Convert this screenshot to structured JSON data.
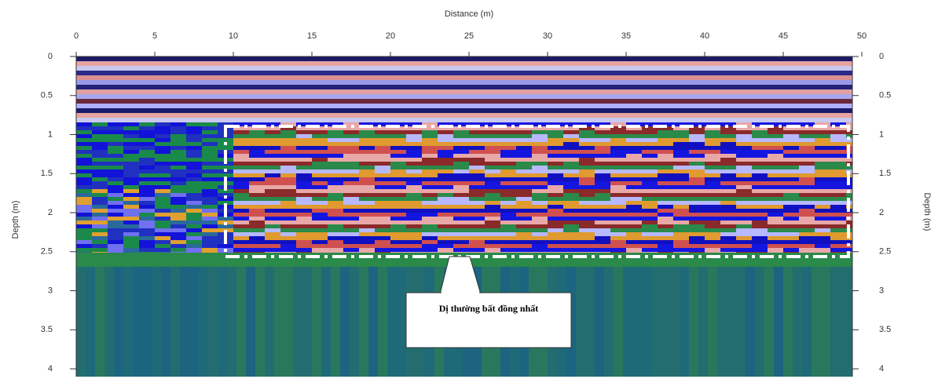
{
  "chart_data": {
    "type": "radargram",
    "xlabel": "Distance (m)",
    "ylabel": "Depth (m)",
    "y2label": "Depth (m)",
    "xlim": [
      0,
      50
    ],
    "xticks": [
      0,
      5,
      10,
      15,
      20,
      25,
      30,
      35,
      40,
      45,
      50
    ],
    "ylim": [
      0,
      4.1
    ],
    "yticks": [
      0,
      0.5,
      1,
      1.5,
      2,
      2.5,
      3,
      3.5,
      4
    ],
    "annotation": "Dị thường bất đồng nhất"
  }
}
